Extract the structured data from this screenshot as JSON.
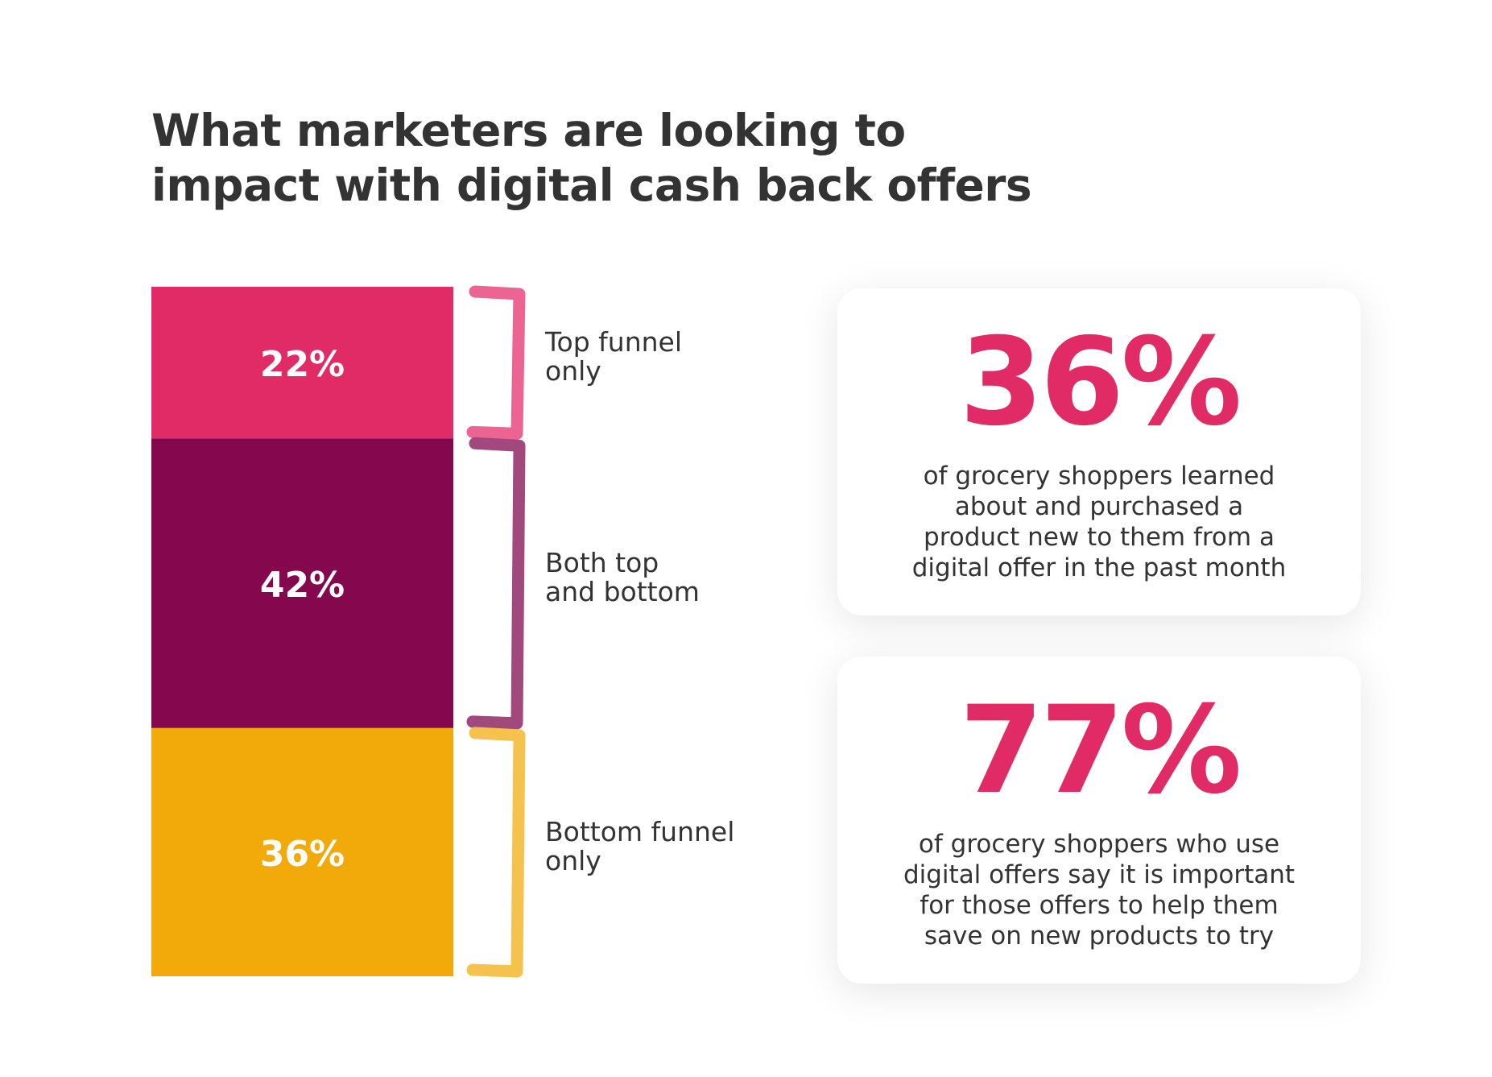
{
  "title": {
    "line1": "What marketers are looking to",
    "line2": "impact with digital cash back offers"
  },
  "chart_data": {
    "type": "bar",
    "stacked": true,
    "categories": [
      "Top funnel only",
      "Both top and bottom",
      "Bottom funnel only"
    ],
    "values": [
      22,
      42,
      36
    ],
    "value_labels": [
      "22%",
      "42%",
      "36%"
    ],
    "segment_labels": [
      [
        "Top funnel",
        "only"
      ],
      [
        "Both top",
        "and bottom"
      ],
      [
        "Bottom funnel",
        "only"
      ]
    ],
    "colors": [
      "#e02b66",
      "#85084f",
      "#f2a90a"
    ],
    "bracket_colors": [
      "#ea5c8c",
      "#9c3f75",
      "#f4c043"
    ],
    "unit": "%"
  },
  "stats": [
    {
      "value": "36%",
      "description_lines": [
        "of grocery shoppers learned",
        "about and purchased a",
        "product new to them from a",
        "digital offer in the past month"
      ]
    },
    {
      "value": "77%",
      "description_lines": [
        "of grocery shoppers who use",
        "digital offers say it is important",
        "for those offers to help them",
        "save on new products to try"
      ]
    }
  ],
  "colors": {
    "accent": "#e02b66",
    "text": "#333333"
  }
}
